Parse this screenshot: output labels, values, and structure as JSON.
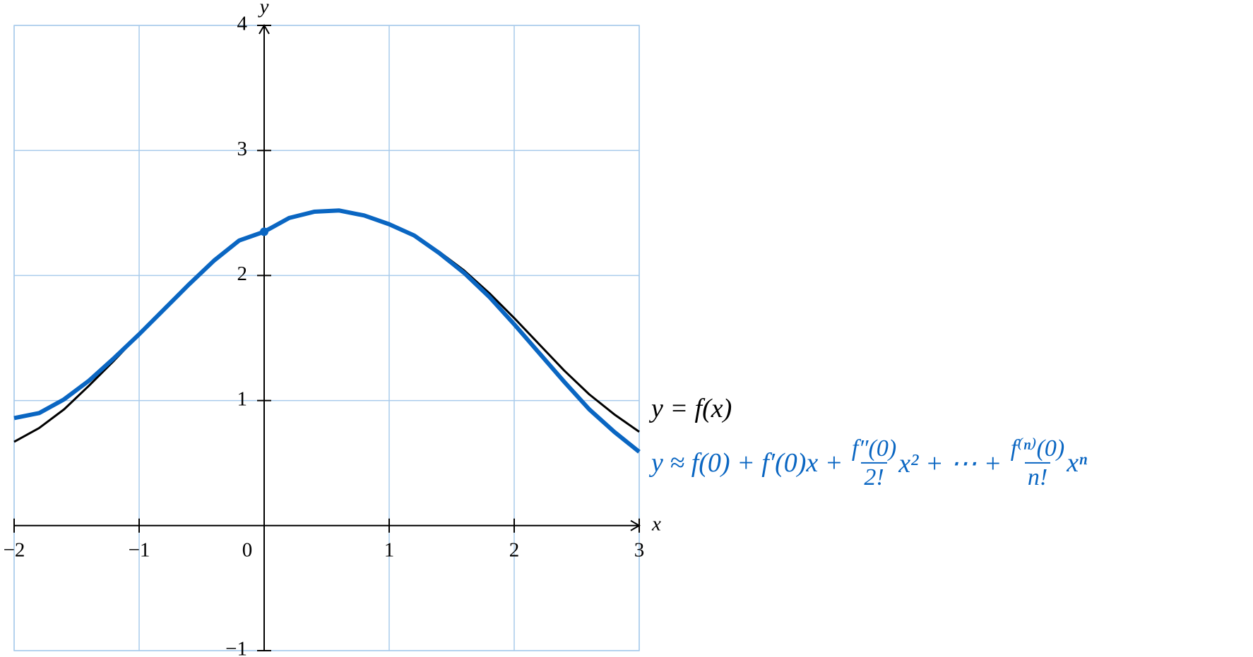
{
  "chart_data": {
    "type": "line",
    "x_label": "x",
    "y_label": "y",
    "x": [
      -2,
      -1.8,
      -1.6,
      -1.4,
      -1.2,
      -1,
      -0.8,
      -0.6,
      -0.4,
      -0.2,
      0,
      0.2,
      0.4,
      0.6,
      0.8,
      1,
      1.2,
      1.4,
      1.6,
      1.8,
      2,
      2.2,
      2.4,
      2.6,
      2.8,
      3
    ],
    "series": [
      {
        "label": [
          "y = f(x)"
        ],
        "color": "#000000",
        "width": 3,
        "values": [
          0.67,
          0.78,
          0.93,
          1.12,
          1.32,
          1.53,
          1.73,
          1.93,
          2.12,
          2.28,
          2.35,
          2.46,
          2.51,
          2.52,
          2.48,
          2.41,
          2.32,
          2.19,
          2.04,
          1.86,
          1.66,
          1.45,
          1.24,
          1.05,
          0.89,
          0.75
        ]
      },
      {
        "label": [
          "y ≈ f(0) + f′(0)x + ",
          {
            "num": "f″(0)",
            "den": "2!"
          },
          "x² + ⋯ + ",
          {
            "num": "f⁽ⁿ⁾(0)",
            "den": "n!"
          },
          "xⁿ"
        ],
        "color": "#0a66c2",
        "width": 6,
        "values": [
          0.86,
          0.9,
          1.01,
          1.16,
          1.34,
          1.53,
          1.73,
          1.93,
          2.12,
          2.28,
          2.35,
          2.46,
          2.51,
          2.52,
          2.48,
          2.41,
          2.32,
          2.18,
          2.02,
          1.83,
          1.61,
          1.38,
          1.15,
          0.93,
          0.75,
          0.59
        ]
      }
    ],
    "xlim": [
      -2,
      3
    ],
    "ylim": [
      -1,
      4
    ],
    "xticks": [
      {
        "value": -2,
        "label": "−2"
      },
      {
        "value": -1,
        "label": "−1"
      },
      0,
      1,
      2,
      3
    ],
    "yticks": [
      {
        "value": -1,
        "label": "−1"
      },
      1,
      2,
      3,
      4
    ],
    "grid": true,
    "grid_color": "#a9cbeb"
  }
}
